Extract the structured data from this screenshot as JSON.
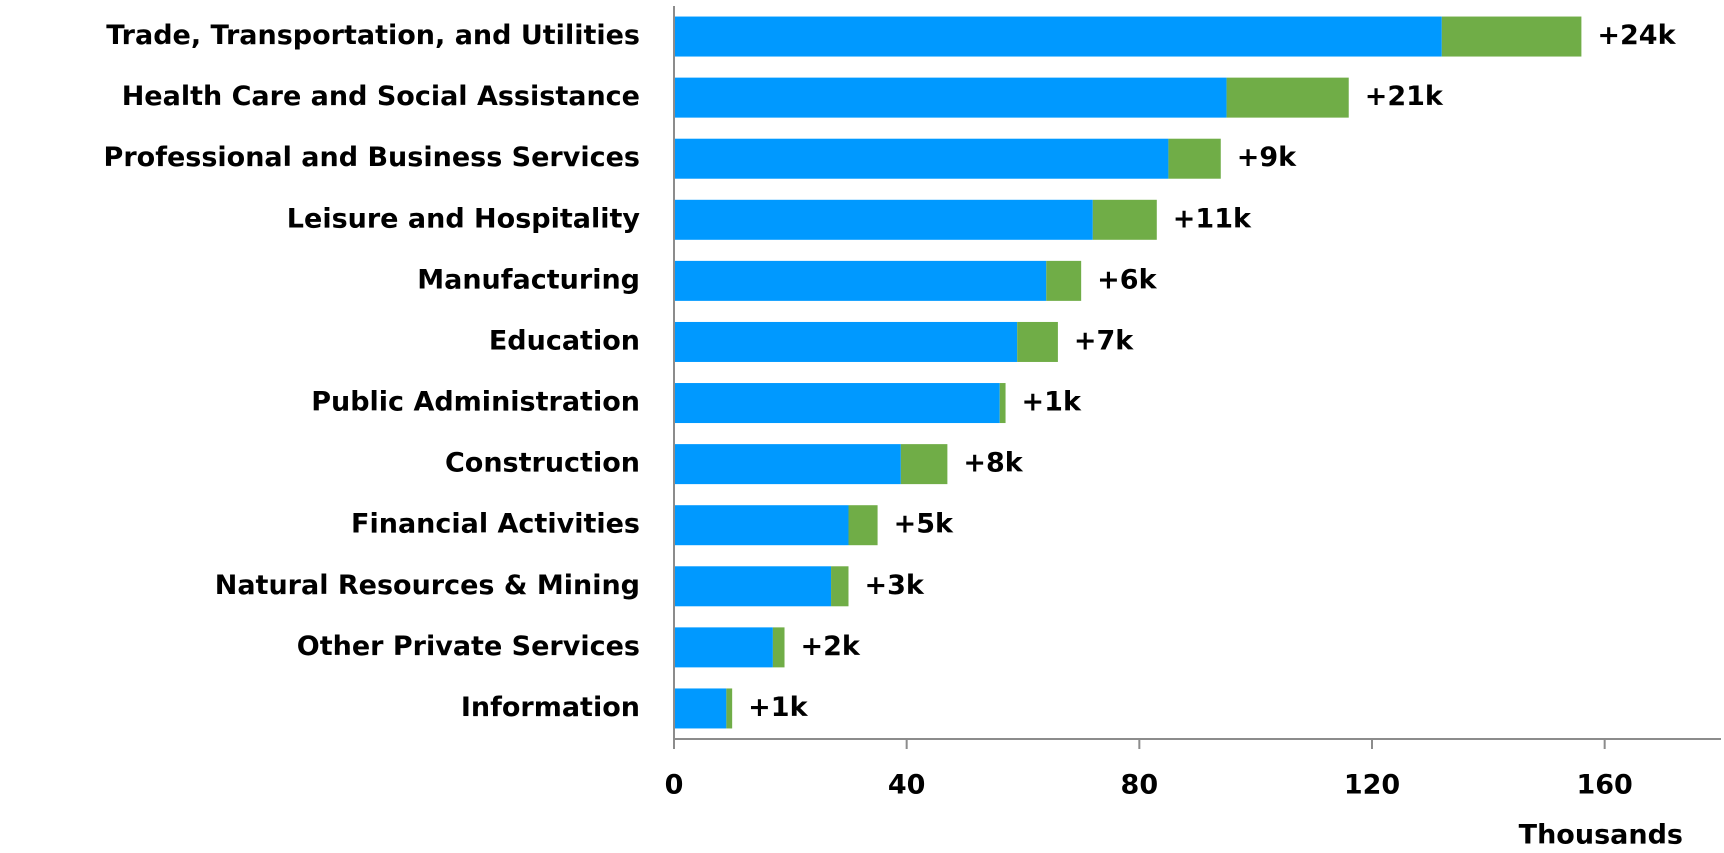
{
  "chart_data": {
    "type": "stacked-barh",
    "categories": [
      "Trade, Transportation, and Utilities",
      "Health Care and Social Assistance",
      "Professional and Business Services",
      "Leisure and Hospitality",
      "Manufacturing",
      "Education",
      "Public Administration",
      "Construction",
      "Financial Activities",
      "Natural Resources & Mining",
      "Other Private Services",
      "Information"
    ],
    "series": [
      {
        "color": "#0099ff",
        "values": [
          132,
          95,
          85,
          72,
          64,
          59,
          56,
          39,
          30,
          27,
          17,
          9
        ]
      },
      {
        "color": "#70ad47",
        "values": [
          24,
          21,
          9,
          11,
          6,
          7,
          1,
          8,
          5,
          3,
          2,
          1
        ],
        "value_labels": [
          "+24k",
          "+21k",
          "+9k",
          "+11k",
          "+6k",
          "+7k",
          "+1k",
          "+8k",
          "+5k",
          "+3k",
          "+2k",
          "+1k"
        ]
      }
    ],
    "xlabel": "Thousands",
    "xlim": [
      0,
      180
    ],
    "xticks": [
      0,
      40,
      80,
      120,
      160
    ],
    "grid": false
  }
}
